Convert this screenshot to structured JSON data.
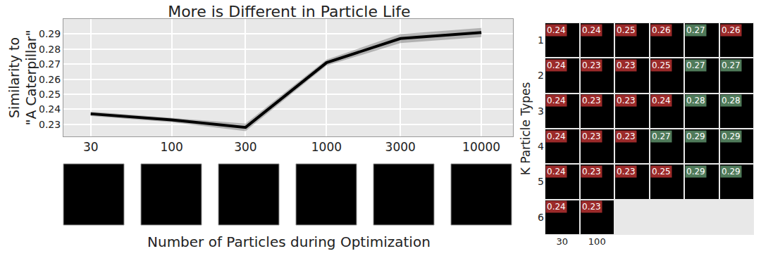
{
  "chart_data": [
    {
      "type": "line",
      "title": "More is Different in Particle Life",
      "x_label": "Number of Particles during Optimization",
      "y_label": [
        "Similarity to",
        "\"A Caterpillar\""
      ],
      "x": [
        30,
        100,
        300,
        1000,
        3000,
        10000
      ],
      "values": [
        0.237,
        0.233,
        0.228,
        0.271,
        0.287,
        0.291
      ],
      "error": [
        0.0015,
        0.0015,
        0.0025,
        0.002,
        0.003,
        0.003
      ],
      "color": "#000000",
      "log": "x",
      "xlim": [
        20,
        16000
      ],
      "xticks": [
        30,
        100,
        300,
        1000,
        3000,
        10000
      ],
      "ylim": [
        0.222,
        0.3
      ],
      "yticks": [
        0.23,
        0.24,
        0.25,
        0.26,
        0.27,
        0.28,
        0.29
      ],
      "grid": true
    },
    {
      "type": "heatmap",
      "y_label": "K Particle Types",
      "categories": [
        "30",
        "100",
        null,
        null,
        null,
        null
      ],
      "y": [
        1,
        2,
        3,
        4,
        5,
        6
      ],
      "ylim": [
        6.5,
        0.5
      ],
      "yticks": [
        1,
        2,
        3,
        4,
        5,
        6
      ],
      "values": [
        [
          0.24,
          0.24,
          0.25,
          0.26,
          0.27,
          0.26
        ],
        [
          0.24,
          0.23,
          0.23,
          0.25,
          0.27,
          0.27
        ],
        [
          0.24,
          0.23,
          0.23,
          0.24,
          0.28,
          0.28
        ],
        [
          0.24,
          0.23,
          0.23,
          0.27,
          0.29,
          0.29
        ],
        [
          0.24,
          0.23,
          0.23,
          0.25,
          0.29,
          0.29
        ],
        [
          0.24,
          0.23,
          null,
          null,
          null,
          null
        ]
      ],
      "colors": [
        [
          "#9b2a2a",
          "#9b2a2a",
          "#9b2a2a",
          "#9b2a2a",
          "#4f7a5a",
          "#9b2a2a"
        ],
        [
          "#9b2a2a",
          "#9b2a2a",
          "#9b2a2a",
          "#9b2a2a",
          "#4f7a5a",
          "#4f7a5a"
        ],
        [
          "#9b2a2a",
          "#9b2a2a",
          "#9b2a2a",
          "#9b2a2a",
          "#4f7a5a",
          "#4f7a5a"
        ],
        [
          "#9b2a2a",
          "#9b2a2a",
          "#9b2a2a",
          "#4f7a5a",
          "#4f7a5a",
          "#4f7a5a"
        ],
        [
          "#9b2a2a",
          "#9b2a2a",
          "#9b2a2a",
          "#9b2a2a",
          "#4f7a5a",
          "#4f7a5a"
        ],
        [
          "#9b2a2a",
          "#9b2a2a",
          null,
          null,
          null,
          null
        ]
      ],
      "data_labels": true
    }
  ]
}
